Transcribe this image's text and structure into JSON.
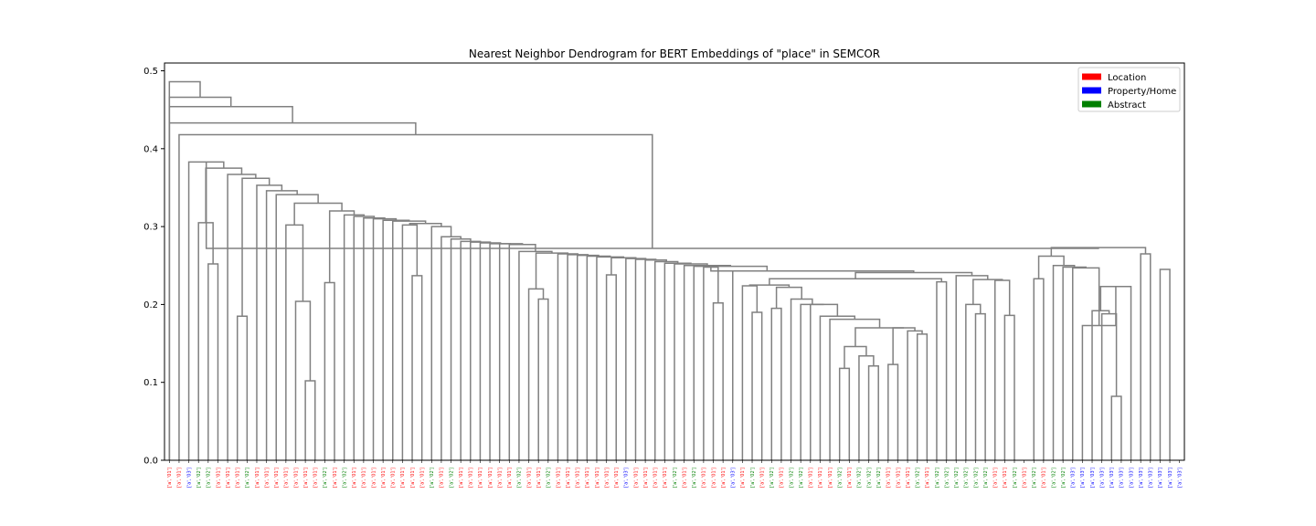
{
  "chart_data": {
    "type": "dendrogram",
    "title": "Nearest Neighbor Dendrogram for BERT Embeddings of \"place\" in SEMCOR",
    "xlabel": "",
    "ylabel": "",
    "ylim": [
      0,
      0.51
    ],
    "yticks": [
      "0.0",
      "0.1",
      "0.2",
      "0.3",
      "0.4",
      "0.5"
    ],
    "grid": false,
    "legend_position": "top-right",
    "link_color": "#808080",
    "legend": [
      {
        "name": "Location",
        "color": "#ff0000"
      },
      {
        "name": "Property/Home",
        "color": "#0000ff"
      },
      {
        "name": "Abstract",
        "color": "#008000"
      }
    ],
    "leaves": [
      {
        "label": "['a', '01']",
        "sense": "Location"
      },
      {
        "label": "['a', '01']",
        "sense": "Location"
      },
      {
        "label": "['a', '03']",
        "sense": "Property/Home"
      },
      {
        "label": "['a', '02']",
        "sense": "Abstract"
      },
      {
        "label": "['a', '02']",
        "sense": "Abstract"
      },
      {
        "label": "['a', '01']",
        "sense": "Location"
      },
      {
        "label": "['a', '01']",
        "sense": "Location"
      },
      {
        "label": "['a', '01']",
        "sense": "Location"
      },
      {
        "label": "['a', '02']",
        "sense": "Abstract"
      },
      {
        "label": "['a', '01']",
        "sense": "Location"
      },
      {
        "label": "['a', '01']",
        "sense": "Location"
      },
      {
        "label": "['a', '01']",
        "sense": "Location"
      },
      {
        "label": "['a', '01']",
        "sense": "Location"
      },
      {
        "label": "['a', '01']",
        "sense": "Location"
      },
      {
        "label": "['a', '01']",
        "sense": "Location"
      },
      {
        "label": "['a', '01']",
        "sense": "Location"
      },
      {
        "label": "['a', '02']",
        "sense": "Abstract"
      },
      {
        "label": "['a', '01']",
        "sense": "Location"
      },
      {
        "label": "['a', '02']",
        "sense": "Abstract"
      },
      {
        "label": "['a', '01']",
        "sense": "Location"
      },
      {
        "label": "['a', '01']",
        "sense": "Location"
      },
      {
        "label": "['a', '01']",
        "sense": "Location"
      },
      {
        "label": "['a', '01']",
        "sense": "Location"
      },
      {
        "label": "['a', '01']",
        "sense": "Location"
      },
      {
        "label": "['a', '01']",
        "sense": "Location"
      },
      {
        "label": "['a', '01']",
        "sense": "Location"
      },
      {
        "label": "['a', '01']",
        "sense": "Location"
      },
      {
        "label": "['a', '02']",
        "sense": "Abstract"
      },
      {
        "label": "['a', '01']",
        "sense": "Location"
      },
      {
        "label": "['a', '02']",
        "sense": "Abstract"
      },
      {
        "label": "['a', '01']",
        "sense": "Location"
      },
      {
        "label": "['a', '01']",
        "sense": "Location"
      },
      {
        "label": "['a', '01']",
        "sense": "Location"
      },
      {
        "label": "['a', '01']",
        "sense": "Location"
      },
      {
        "label": "['a', '01']",
        "sense": "Location"
      },
      {
        "label": "['a', '01']",
        "sense": "Location"
      },
      {
        "label": "['a', '02']",
        "sense": "Abstract"
      },
      {
        "label": "['a', '01']",
        "sense": "Location"
      },
      {
        "label": "['a', '01']",
        "sense": "Location"
      },
      {
        "label": "['a', '02']",
        "sense": "Abstract"
      },
      {
        "label": "['a', '01']",
        "sense": "Location"
      },
      {
        "label": "['a', '01']",
        "sense": "Location"
      },
      {
        "label": "['a', '01']",
        "sense": "Location"
      },
      {
        "label": "['a', '01']",
        "sense": "Location"
      },
      {
        "label": "['a', '01']",
        "sense": "Location"
      },
      {
        "label": "['a', '01']",
        "sense": "Location"
      },
      {
        "label": "['a', '01']",
        "sense": "Location"
      },
      {
        "label": "['a', '03']",
        "sense": "Property/Home"
      },
      {
        "label": "['a', '01']",
        "sense": "Location"
      },
      {
        "label": "['a', '01']",
        "sense": "Location"
      },
      {
        "label": "['a', '01']",
        "sense": "Location"
      },
      {
        "label": "['a', '01']",
        "sense": "Location"
      },
      {
        "label": "['a', '02']",
        "sense": "Abstract"
      },
      {
        "label": "['a', '01']",
        "sense": "Location"
      },
      {
        "label": "['a', '02']",
        "sense": "Abstract"
      },
      {
        "label": "['a', '01']",
        "sense": "Location"
      },
      {
        "label": "['a', '01']",
        "sense": "Location"
      },
      {
        "label": "['a', '01']",
        "sense": "Location"
      },
      {
        "label": "['a', '03']",
        "sense": "Property/Home"
      },
      {
        "label": "['a', '01']",
        "sense": "Location"
      },
      {
        "label": "['a', '02']",
        "sense": "Abstract"
      },
      {
        "label": "['a', '01']",
        "sense": "Location"
      },
      {
        "label": "['a', '02']",
        "sense": "Abstract"
      },
      {
        "label": "['a', '01']",
        "sense": "Location"
      },
      {
        "label": "['a', '02']",
        "sense": "Abstract"
      },
      {
        "label": "['a', '02']",
        "sense": "Abstract"
      },
      {
        "label": "['a', '01']",
        "sense": "Location"
      },
      {
        "label": "['a', '01']",
        "sense": "Location"
      },
      {
        "label": "['a', '01']",
        "sense": "Location"
      },
      {
        "label": "['a', '02']",
        "sense": "Abstract"
      },
      {
        "label": "['a', '01']",
        "sense": "Location"
      },
      {
        "label": "['a', '02']",
        "sense": "Abstract"
      },
      {
        "label": "['a', '02']",
        "sense": "Abstract"
      },
      {
        "label": "['a', '02']",
        "sense": "Abstract"
      },
      {
        "label": "['a', '01']",
        "sense": "Location"
      },
      {
        "label": "['a', '01']",
        "sense": "Location"
      },
      {
        "label": "['a', '01']",
        "sense": "Location"
      },
      {
        "label": "['a', '02']",
        "sense": "Abstract"
      },
      {
        "label": "['a', '01']",
        "sense": "Location"
      },
      {
        "label": "['a', '02']",
        "sense": "Abstract"
      },
      {
        "label": "['a', '02']",
        "sense": "Abstract"
      },
      {
        "label": "['a', '02']",
        "sense": "Abstract"
      },
      {
        "label": "['a', '02']",
        "sense": "Abstract"
      },
      {
        "label": "['a', '02']",
        "sense": "Abstract"
      },
      {
        "label": "['a', '02']",
        "sense": "Abstract"
      },
      {
        "label": "['a', '01']",
        "sense": "Location"
      },
      {
        "label": "['a', '01']",
        "sense": "Location"
      },
      {
        "label": "['a', '02']",
        "sense": "Abstract"
      },
      {
        "label": "['a', '01']",
        "sense": "Location"
      },
      {
        "label": "['a', '02']",
        "sense": "Abstract"
      },
      {
        "label": "['a', '01']",
        "sense": "Location"
      },
      {
        "label": "['a', '02']",
        "sense": "Abstract"
      },
      {
        "label": "['a', '02']",
        "sense": "Abstract"
      },
      {
        "label": "['a', '03']",
        "sense": "Property/Home"
      },
      {
        "label": "['a', '03']",
        "sense": "Property/Home"
      },
      {
        "label": "['a', '03']",
        "sense": "Property/Home"
      },
      {
        "label": "['a', '03']",
        "sense": "Property/Home"
      },
      {
        "label": "['a', '03']",
        "sense": "Property/Home"
      },
      {
        "label": "['a', '03']",
        "sense": "Property/Home"
      },
      {
        "label": "['a', '03']",
        "sense": "Property/Home"
      },
      {
        "label": "['a', '03']",
        "sense": "Property/Home"
      },
      {
        "label": "['a', '03']",
        "sense": "Property/Home"
      },
      {
        "label": "['a', '03']",
        "sense": "Property/Home"
      },
      {
        "label": "['a', '03']",
        "sense": "Property/Home"
      },
      {
        "label": "['a', '03']",
        "sense": "Property/Home"
      }
    ],
    "links": [
      {
        "left": 102,
        "right": 103,
        "height": 0.245
      },
      {
        "left": 100,
        "right": 101,
        "height": 0.265
      },
      {
        "left": 97,
        "right": 98,
        "height": 0.082
      },
      {
        "left": "n3",
        "right": 96,
        "height": 0.188
      },
      {
        "left": 95,
        "right": "n4",
        "height": 0.192
      },
      {
        "left": "n5",
        "right": 99,
        "height": 0.223
      },
      {
        "left": 94,
        "right": "n6",
        "height": 0.173
      },
      {
        "left": "n7",
        "right": 93,
        "height": 0.247
      },
      {
        "left": 92,
        "right": "n8",
        "height": 0.248
      },
      {
        "left": 91,
        "right": "n9",
        "height": 0.25
      },
      {
        "left": 90,
        "right": 89,
        "height": 0.233
      },
      {
        "left": "n11",
        "right": "n10",
        "height": 0.262
      },
      {
        "left": "n12",
        "right": "n2",
        "height": 0.273
      },
      {
        "left": 86,
        "right": 87,
        "height": 0.186
      },
      {
        "left": 85,
        "right": "n14",
        "height": 0.231
      },
      {
        "left": 83,
        "right": 84,
        "height": 0.188
      },
      {
        "left": 82,
        "right": "n16",
        "height": 0.2
      },
      {
        "left": "n17",
        "right": "n15",
        "height": 0.232
      },
      {
        "left": 81,
        "right": "n18",
        "height": 0.237
      },
      {
        "left": 79,
        "right": 80,
        "height": 0.229
      },
      {
        "left": 78,
        "right": 77,
        "height": 0.162
      },
      {
        "left": 76,
        "right": "n21",
        "height": 0.166
      },
      {
        "left": 74,
        "right": 75,
        "height": 0.123
      },
      {
        "left": "n22",
        "right": "n23",
        "height": 0.17
      },
      {
        "left": 72,
        "right": 73,
        "height": 0.121
      },
      {
        "left": 71,
        "right": "n25",
        "height": 0.134
      },
      {
        "left": 69,
        "right": 70,
        "height": 0.118
      },
      {
        "left": "n27",
        "right": "n26",
        "height": 0.146
      },
      {
        "left": "n28",
        "right": "n24",
        "height": 0.17
      },
      {
        "left": 68,
        "right": "n29",
        "height": 0.181
      },
      {
        "left": 67,
        "right": "n30",
        "height": 0.185
      },
      {
        "left": 66,
        "right": "n31",
        "height": 0.2
      },
      {
        "left": 65,
        "right": "n32",
        "height": 0.2
      },
      {
        "left": 64,
        "right": "n33",
        "height": 0.207
      },
      {
        "left": 62,
        "right": 63,
        "height": 0.195
      },
      {
        "left": "n35",
        "right": "n34",
        "height": 0.222
      },
      {
        "left": 60,
        "right": 61,
        "height": 0.19
      },
      {
        "left": 59,
        "right": "n37",
        "height": 0.224
      },
      {
        "left": "n38",
        "right": "n36",
        "height": 0.225
      },
      {
        "left": "n39",
        "right": "n20",
        "height": 0.233
      },
      {
        "left": "n40",
        "right": "n19",
        "height": 0.241
      },
      {
        "left": "n41",
        "right": 58,
        "height": 0.243
      },
      {
        "left": 56,
        "right": 57,
        "height": 0.202
      },
      {
        "left": 55,
        "right": "n43",
        "height": 0.248
      },
      {
        "left": "n44",
        "right": "n42",
        "height": 0.243
      },
      {
        "left": 54,
        "right": "n45",
        "height": 0.249
      },
      {
        "left": 53,
        "right": "n46",
        "height": 0.25
      },
      {
        "left": 52,
        "right": "n47",
        "height": 0.252
      },
      {
        "left": 51,
        "right": "n48",
        "height": 0.253
      },
      {
        "left": 50,
        "right": "n49",
        "height": 0.255
      },
      {
        "left": 49,
        "right": "n50",
        "height": 0.257
      },
      {
        "left": 48,
        "right": "n51",
        "height": 0.258
      },
      {
        "left": 47,
        "right": "n52",
        "height": 0.259
      },
      {
        "left": 45,
        "right": 46,
        "height": 0.238
      },
      {
        "left": "n54",
        "right": "n53",
        "height": 0.26
      },
      {
        "left": 44,
        "right": "n55",
        "height": 0.261
      },
      {
        "left": 43,
        "right": "n56",
        "height": 0.262
      },
      {
        "left": 42,
        "right": "n57",
        "height": 0.263
      },
      {
        "left": 41,
        "right": "n58",
        "height": 0.264
      },
      {
        "left": 40,
        "right": "n59",
        "height": 0.265
      },
      {
        "left": 38,
        "right": 39,
        "height": 0.207
      },
      {
        "left": 37,
        "right": "n61",
        "height": 0.22
      },
      {
        "left": "n62",
        "right": "n60",
        "height": 0.266
      },
      {
        "left": 36,
        "right": "n63",
        "height": 0.268
      },
      {
        "left": 35,
        "right": "n64",
        "height": 0.277
      },
      {
        "left": 34,
        "right": "n65",
        "height": 0.278
      },
      {
        "left": 33,
        "right": "n66",
        "height": 0.278
      },
      {
        "left": 32,
        "right": "n67",
        "height": 0.279
      },
      {
        "left": 31,
        "right": "n68",
        "height": 0.28
      },
      {
        "left": 30,
        "right": "n69",
        "height": 0.281
      },
      {
        "left": 29,
        "right": "n70",
        "height": 0.284
      },
      {
        "left": 28,
        "right": "n71",
        "height": 0.287
      },
      {
        "left": 27,
        "right": "n72",
        "height": 0.3
      },
      {
        "left": 25,
        "right": 26,
        "height": 0.237
      },
      {
        "left": 24,
        "right": "n74",
        "height": 0.302
      },
      {
        "left": "n75",
        "right": "n73",
        "height": 0.304
      },
      {
        "left": 23,
        "right": "n76",
        "height": 0.307
      },
      {
        "left": 22,
        "right": "n77",
        "height": 0.308
      },
      {
        "left": 21,
        "right": "n78",
        "height": 0.31
      },
      {
        "left": 20,
        "right": "n79",
        "height": 0.311
      },
      {
        "left": 19,
        "right": "n80",
        "height": 0.313
      },
      {
        "left": 18,
        "right": "n81",
        "height": 0.315
      },
      {
        "left": 17,
        "right": 16,
        "height": 0.228
      },
      {
        "left": "n83",
        "right": "n82",
        "height": 0.32
      },
      {
        "left": 14,
        "right": 15,
        "height": 0.102
      },
      {
        "left": 13,
        "right": "n85",
        "height": 0.204
      },
      {
        "left": 12,
        "right": "n86",
        "height": 0.302
      },
      {
        "left": "n87",
        "right": "n84",
        "height": 0.33
      },
      {
        "left": 11,
        "right": "n88",
        "height": 0.341
      },
      {
        "left": 10,
        "right": "n89",
        "height": 0.346
      },
      {
        "left": 9,
        "right": "n90",
        "height": 0.353
      },
      {
        "left": 8,
        "right": 7,
        "height": 0.185
      },
      {
        "left": "n92",
        "right": "n91",
        "height": 0.362
      },
      {
        "left": 6,
        "right": "n93",
        "height": 0.367
      },
      {
        "left": 5,
        "right": 4,
        "height": 0.252
      },
      {
        "left": "n95",
        "right": 3,
        "height": 0.305
      },
      {
        "left": "n96",
        "right": "n94",
        "height": 0.375
      },
      {
        "left": 2,
        "right": "n97",
        "height": 0.383
      },
      {
        "left": "n98",
        "right": "n13",
        "height": 0.272
      },
      {
        "left": 1,
        "right": "n99",
        "height": 0.418
      },
      {
        "left": 0,
        "right": 0,
        "height": 0.0
      },
      {
        "left": 0,
        "right": "n100",
        "height": 0.433
      },
      {
        "left": 0,
        "right": "n102",
        "height": 0.454
      },
      {
        "left": 0,
        "right": "n103",
        "height": 0.466
      },
      {
        "left": 0,
        "right": "n104",
        "height": 0.486
      }
    ]
  }
}
